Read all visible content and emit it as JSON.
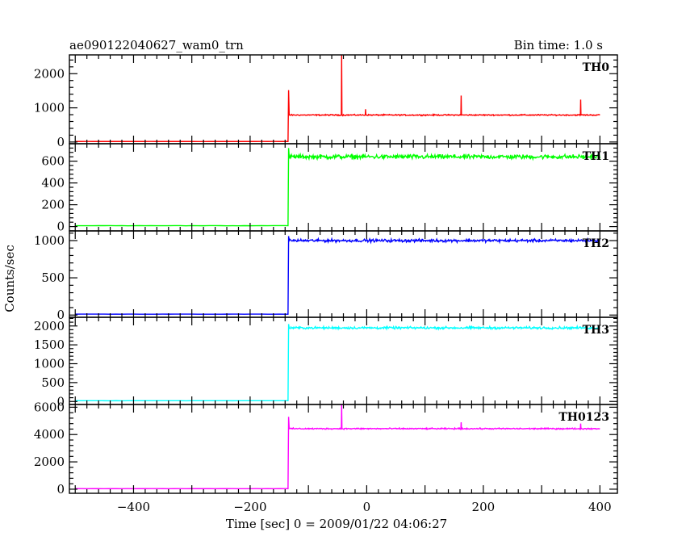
{
  "chart_data": {
    "type": "line",
    "title_left": "ae090122040627_wam0_trn",
    "title_right": "Bin time: 1.0 s",
    "xlabel": "Time [sec] 0 = 2009/01/22 04:06:27",
    "ylabel": "Counts/sec",
    "xlim": [
      -510,
      430
    ],
    "x_tick_values": [
      -400,
      -200,
      0,
      200,
      400
    ],
    "x_tick_labels": [
      "−400",
      "−200",
      "0",
      "200",
      "400"
    ],
    "onset_time": -135,
    "data_end": 400,
    "panels": [
      {
        "name": "TH0",
        "color": "#ff0000",
        "ylim": [
          -50,
          2550
        ],
        "ticks": [
          0,
          1000,
          2000
        ],
        "tick_labels": [
          "0",
          "1000",
          "2000"
        ],
        "baseline": 15,
        "level": 790,
        "noise": 25,
        "peak": 1520,
        "spikes": [
          {
            "x": -43,
            "y": 2550
          },
          {
            "x": -2,
            "y": 960
          },
          {
            "x": 162,
            "y": 1360
          },
          {
            "x": 367,
            "y": 1240
          }
        ]
      },
      {
        "name": "TH1",
        "color": "#00ff00",
        "ylim": [
          -40,
          760
        ],
        "ticks": [
          0,
          200,
          400,
          600
        ],
        "tick_labels": [
          "0",
          "200",
          "400",
          "600"
        ],
        "baseline": 8,
        "level": 640,
        "noise": 30,
        "peak": 720,
        "spikes": []
      },
      {
        "name": "TH2",
        "color": "#0000ff",
        "ylim": [
          -30,
          1130
        ],
        "ticks": [
          0,
          500,
          1000
        ],
        "tick_labels": [
          "0",
          "500",
          "1000"
        ],
        "baseline": 12,
        "level": 1000,
        "noise": 28,
        "peak": 1060,
        "spikes": []
      },
      {
        "name": "TH3",
        "color": "#00ffff",
        "ylim": [
          -80,
          2230
        ],
        "ticks": [
          0,
          500,
          1000,
          1500,
          2000
        ],
        "tick_labels": [
          "0",
          "500",
          "1000",
          "1500",
          "2000"
        ],
        "baseline": 20,
        "level": 1950,
        "noise": 45,
        "peak": 2050,
        "spikes": []
      },
      {
        "name": "TH0123",
        "color": "#ff00ff",
        "ylim": [
          -300,
          6200
        ],
        "ticks": [
          0,
          2000,
          4000,
          6000
        ],
        "tick_labels": [
          "0",
          "2000",
          "4000",
          "6000"
        ],
        "baseline": 40,
        "level": 4430,
        "noise": 70,
        "peak": 5300,
        "spikes": [
          {
            "x": -43,
            "y": 6200
          },
          {
            "x": 162,
            "y": 4900
          },
          {
            "x": 367,
            "y": 4800
          }
        ]
      }
    ]
  }
}
